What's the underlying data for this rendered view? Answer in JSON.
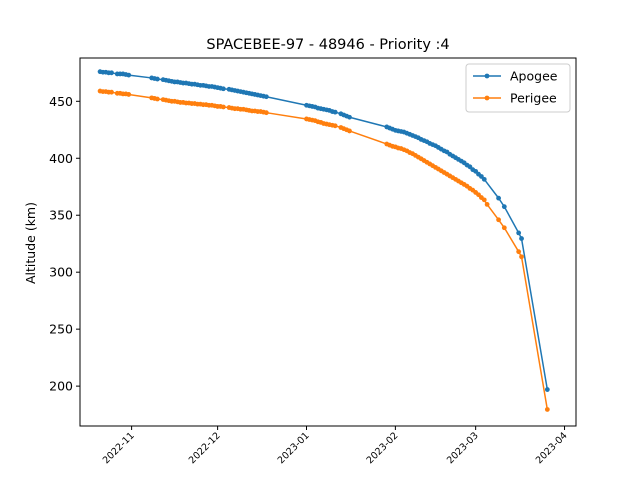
{
  "chart_data": {
    "type": "line",
    "title": "SPACEBEE-97 - 48946 - Priority :4",
    "xlabel": "",
    "ylabel": "Altitude (km)",
    "x_type": "date",
    "xlim": [
      "2022-10-14",
      "2023-04-05"
    ],
    "ylim": [
      165,
      488
    ],
    "xticks": [
      "2022-11-01",
      "2022-12-01",
      "2023-01-01",
      "2023-02-01",
      "2023-03-01",
      "2023-04-01"
    ],
    "xtick_labels": [
      "2022-11",
      "2022-12",
      "2023-01",
      "2023-02",
      "2023-03",
      "2023-04"
    ],
    "yticks": [
      200,
      250,
      300,
      350,
      400,
      450
    ],
    "ytick_labels": [
      "200",
      "250",
      "300",
      "350",
      "400",
      "450"
    ],
    "grid": false,
    "legend": {
      "position": "top-right"
    },
    "series": [
      {
        "name": "Apogee",
        "color": "#1f77b4",
        "points": [
          [
            "2022-10-21",
            476
          ],
          [
            "2022-10-22",
            475.5
          ],
          [
            "2022-10-23",
            475.5
          ],
          [
            "2022-10-24",
            475
          ],
          [
            "2022-10-25",
            475
          ],
          [
            "2022-10-27",
            474
          ],
          [
            "2022-10-28",
            474
          ],
          [
            "2022-10-29",
            474
          ],
          [
            "2022-10-30",
            473.5
          ],
          [
            "2022-10-31",
            473
          ],
          [
            "2022-11-08",
            470.5
          ],
          [
            "2022-11-09",
            470
          ],
          [
            "2022-11-10",
            469.5
          ],
          [
            "2022-11-12",
            469
          ],
          [
            "2022-11-13",
            468.5
          ],
          [
            "2022-11-14",
            468
          ],
          [
            "2022-11-15",
            467.5
          ],
          [
            "2022-11-16",
            467
          ],
          [
            "2022-11-17",
            467
          ],
          [
            "2022-11-18",
            466.5
          ],
          [
            "2022-11-19",
            466
          ],
          [
            "2022-11-20",
            466
          ],
          [
            "2022-11-21",
            465.5
          ],
          [
            "2022-11-22",
            465
          ],
          [
            "2022-11-23",
            465
          ],
          [
            "2022-11-24",
            464.5
          ],
          [
            "2022-11-25",
            464
          ],
          [
            "2022-11-26",
            464
          ],
          [
            "2022-11-27",
            463.5
          ],
          [
            "2022-11-28",
            463
          ],
          [
            "2022-11-29",
            463
          ],
          [
            "2022-11-30",
            462.5
          ],
          [
            "2022-12-01",
            462
          ],
          [
            "2022-12-02",
            461.5
          ],
          [
            "2022-12-03",
            461
          ],
          [
            "2022-12-05",
            460.5
          ],
          [
            "2022-12-06",
            460
          ],
          [
            "2022-12-07",
            459.5
          ],
          [
            "2022-12-08",
            459
          ],
          [
            "2022-12-09",
            458.5
          ],
          [
            "2022-12-10",
            458
          ],
          [
            "2022-12-11",
            457.5
          ],
          [
            "2022-12-12",
            457
          ],
          [
            "2022-12-13",
            456.5
          ],
          [
            "2022-12-14",
            456
          ],
          [
            "2022-12-15",
            455.5
          ],
          [
            "2022-12-16",
            455
          ],
          [
            "2022-12-17",
            454.5
          ],
          [
            "2022-12-18",
            454
          ],
          [
            "2023-01-01",
            446.5
          ],
          [
            "2023-01-02",
            446
          ],
          [
            "2023-01-03",
            445.5
          ],
          [
            "2023-01-04",
            445
          ],
          [
            "2023-01-05",
            444
          ],
          [
            "2023-01-06",
            443.5
          ],
          [
            "2023-01-07",
            443
          ],
          [
            "2023-01-08",
            442.5
          ],
          [
            "2023-01-09",
            442
          ],
          [
            "2023-01-10",
            441
          ],
          [
            "2023-01-11",
            440.5
          ],
          [
            "2023-01-13",
            439
          ],
          [
            "2023-01-14",
            438
          ],
          [
            "2023-01-15",
            437
          ],
          [
            "2023-01-16",
            436
          ],
          [
            "2023-01-29",
            427.5
          ],
          [
            "2023-01-30",
            426.5
          ],
          [
            "2023-01-31",
            425.5
          ],
          [
            "2023-02-01",
            424.5
          ],
          [
            "2023-02-02",
            424
          ],
          [
            "2023-02-03",
            423.5
          ],
          [
            "2023-02-04",
            423
          ],
          [
            "2023-02-05",
            422
          ],
          [
            "2023-02-06",
            421
          ],
          [
            "2023-02-07",
            420
          ],
          [
            "2023-02-08",
            419
          ],
          [
            "2023-02-09",
            418
          ],
          [
            "2023-02-10",
            416.5
          ],
          [
            "2023-02-11",
            415.5
          ],
          [
            "2023-02-12",
            414.5
          ],
          [
            "2023-02-13",
            413
          ],
          [
            "2023-02-14",
            412
          ],
          [
            "2023-02-15",
            411
          ],
          [
            "2023-02-16",
            409.5
          ],
          [
            "2023-02-17",
            408
          ],
          [
            "2023-02-18",
            406.5
          ],
          [
            "2023-02-19",
            405.5
          ],
          [
            "2023-02-20",
            403.5
          ],
          [
            "2023-02-21",
            402
          ],
          [
            "2023-02-22",
            400.5
          ],
          [
            "2023-02-23",
            399
          ],
          [
            "2023-02-24",
            397.5
          ],
          [
            "2023-02-25",
            396
          ],
          [
            "2023-02-26",
            394
          ],
          [
            "2023-02-27",
            392.5
          ],
          [
            "2023-02-28",
            390
          ],
          [
            "2023-03-01",
            388.5
          ],
          [
            "2023-03-02",
            386
          ],
          [
            "2023-03-03",
            384
          ],
          [
            "2023-03-04",
            381.5
          ],
          [
            "2023-03-09",
            365
          ],
          [
            "2023-03-11",
            357.5
          ],
          [
            "2023-03-16",
            334.5
          ],
          [
            "2023-03-17",
            329.5
          ],
          [
            "2023-03-26",
            197
          ]
        ]
      },
      {
        "name": "Perigee",
        "color": "#ff7f0e",
        "points": [
          [
            "2022-10-21",
            459
          ],
          [
            "2022-10-22",
            458.5
          ],
          [
            "2022-10-23",
            458.5
          ],
          [
            "2022-10-24",
            458
          ],
          [
            "2022-10-25",
            458
          ],
          [
            "2022-10-27",
            457
          ],
          [
            "2022-10-28",
            457
          ],
          [
            "2022-10-29",
            456.5
          ],
          [
            "2022-10-30",
            456.5
          ],
          [
            "2022-10-31",
            456
          ],
          [
            "2022-11-08",
            453
          ],
          [
            "2022-11-09",
            452.5
          ],
          [
            "2022-11-10",
            452
          ],
          [
            "2022-11-12",
            451.5
          ],
          [
            "2022-11-13",
            451
          ],
          [
            "2022-11-14",
            450.5
          ],
          [
            "2022-11-15",
            450
          ],
          [
            "2022-11-16",
            450
          ],
          [
            "2022-11-17",
            449.5
          ],
          [
            "2022-11-18",
            449
          ],
          [
            "2022-11-19",
            449
          ],
          [
            "2022-11-20",
            448.5
          ],
          [
            "2022-11-21",
            448.5
          ],
          [
            "2022-11-22",
            448
          ],
          [
            "2022-11-23",
            448
          ],
          [
            "2022-11-24",
            447.5
          ],
          [
            "2022-11-25",
            447.5
          ],
          [
            "2022-11-26",
            447
          ],
          [
            "2022-11-27",
            447
          ],
          [
            "2022-11-28",
            446.5
          ],
          [
            "2022-11-29",
            446.5
          ],
          [
            "2022-11-30",
            446
          ],
          [
            "2022-12-01",
            445.5
          ],
          [
            "2022-12-02",
            445.5
          ],
          [
            "2022-12-03",
            445
          ],
          [
            "2022-12-05",
            444.5
          ],
          [
            "2022-12-06",
            444
          ],
          [
            "2022-12-07",
            443.5
          ],
          [
            "2022-12-08",
            443.5
          ],
          [
            "2022-12-09",
            443
          ],
          [
            "2022-12-10",
            443
          ],
          [
            "2022-12-11",
            442.5
          ],
          [
            "2022-12-12",
            442
          ],
          [
            "2022-12-13",
            441.5
          ],
          [
            "2022-12-14",
            441.5
          ],
          [
            "2022-12-15",
            441
          ],
          [
            "2022-12-16",
            441
          ],
          [
            "2022-12-17",
            440.5
          ],
          [
            "2022-12-18",
            440
          ],
          [
            "2023-01-01",
            434.5
          ],
          [
            "2023-01-02",
            434
          ],
          [
            "2023-01-03",
            433.5
          ],
          [
            "2023-01-04",
            433
          ],
          [
            "2023-01-05",
            432
          ],
          [
            "2023-01-06",
            431.5
          ],
          [
            "2023-01-07",
            430.5
          ],
          [
            "2023-01-08",
            430
          ],
          [
            "2023-01-09",
            429.5
          ],
          [
            "2023-01-10",
            429
          ],
          [
            "2023-01-11",
            428.5
          ],
          [
            "2023-01-13",
            427
          ],
          [
            "2023-01-14",
            426
          ],
          [
            "2023-01-15",
            425
          ],
          [
            "2023-01-16",
            424
          ],
          [
            "2023-01-29",
            412.5
          ],
          [
            "2023-01-30",
            411.5
          ],
          [
            "2023-01-31",
            410.5
          ],
          [
            "2023-02-01",
            410
          ],
          [
            "2023-02-02",
            409
          ],
          [
            "2023-02-03",
            408.5
          ],
          [
            "2023-02-04",
            407.5
          ],
          [
            "2023-02-05",
            406.5
          ],
          [
            "2023-02-06",
            405
          ],
          [
            "2023-02-07",
            404
          ],
          [
            "2023-02-08",
            402.5
          ],
          [
            "2023-02-09",
            401
          ],
          [
            "2023-02-10",
            399.5
          ],
          [
            "2023-02-11",
            398
          ],
          [
            "2023-02-12",
            396.5
          ],
          [
            "2023-02-13",
            395
          ],
          [
            "2023-02-14",
            393.5
          ],
          [
            "2023-02-15",
            392
          ],
          [
            "2023-02-16",
            390.5
          ],
          [
            "2023-02-17",
            389
          ],
          [
            "2023-02-18",
            387.5
          ],
          [
            "2023-02-19",
            386
          ],
          [
            "2023-02-20",
            384.5
          ],
          [
            "2023-02-21",
            383
          ],
          [
            "2023-02-22",
            381.5
          ],
          [
            "2023-02-23",
            380
          ],
          [
            "2023-02-24",
            378.5
          ],
          [
            "2023-02-25",
            377
          ],
          [
            "2023-02-26",
            375.5
          ],
          [
            "2023-02-27",
            373.5
          ],
          [
            "2023-02-28",
            372
          ],
          [
            "2023-03-01",
            370
          ],
          [
            "2023-03-02",
            368
          ],
          [
            "2023-03-03",
            365.5
          ],
          [
            "2023-03-04",
            363.5
          ],
          [
            "2023-03-05",
            359.5
          ],
          [
            "2023-03-09",
            346
          ],
          [
            "2023-03-11",
            339
          ],
          [
            "2023-03-16",
            318
          ],
          [
            "2023-03-17",
            313.5
          ],
          [
            "2023-03-26",
            179.5
          ]
        ]
      }
    ]
  }
}
